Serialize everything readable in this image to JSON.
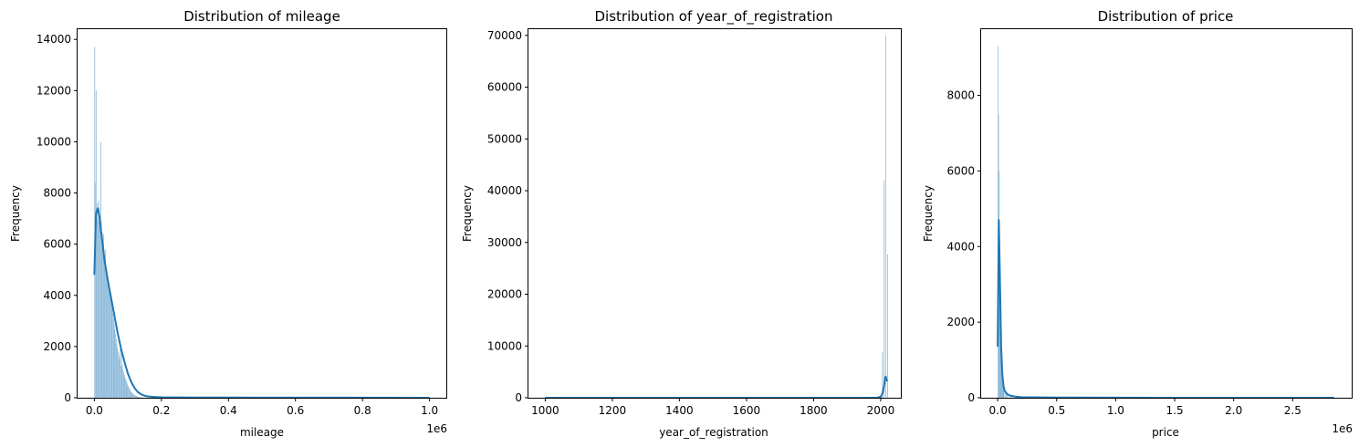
{
  "chart_data": [
    {
      "type": "bar",
      "title": "Distribution of mileage",
      "xlabel": "mileage",
      "ylabel": "Frequency",
      "x_offset_label": "1e6",
      "xlim": [
        -0.05,
        1.05
      ],
      "ylim": [
        0,
        14400
      ],
      "xticks": [
        0.0,
        0.2,
        0.4,
        0.6,
        0.8,
        1.0
      ],
      "xtick_labels": [
        "0.0",
        "0.2",
        "0.4",
        "0.6",
        "0.8",
        "1.0"
      ],
      "yticks": [
        0,
        2000,
        4000,
        6000,
        8000,
        10000,
        12000,
        14000
      ],
      "ytick_labels": [
        "0",
        "2000",
        "4000",
        "6000",
        "8000",
        "10000",
        "12000",
        "14000"
      ],
      "grid": false,
      "bar_color": "#1f77b4",
      "kde_color": "#1f77b4",
      "bars": {
        "x": [
          0.001,
          0.003,
          0.005,
          0.007,
          0.009,
          0.011,
          0.013,
          0.015,
          0.017,
          0.019,
          0.021,
          0.023,
          0.025,
          0.027,
          0.029,
          0.031,
          0.033,
          0.035,
          0.037,
          0.039,
          0.041,
          0.043,
          0.045,
          0.047,
          0.049,
          0.051,
          0.053,
          0.055,
          0.057,
          0.059,
          0.061,
          0.063,
          0.065,
          0.067,
          0.069,
          0.071,
          0.073,
          0.075,
          0.077,
          0.079,
          0.081,
          0.083,
          0.085,
          0.087,
          0.089,
          0.091,
          0.093,
          0.095,
          0.097,
          0.099,
          0.101,
          0.103,
          0.105,
          0.107,
          0.109,
          0.111,
          0.113,
          0.115,
          0.117,
          0.119,
          0.121,
          0.123,
          0.125,
          0.127,
          0.129,
          0.131,
          0.133,
          0.135,
          0.137,
          0.139,
          0.141,
          0.143,
          0.145,
          0.147,
          0.149,
          0.151,
          0.153,
          0.155,
          0.157,
          0.159,
          0.161,
          0.163,
          0.165,
          0.167,
          0.169,
          0.171,
          0.173,
          0.175
        ],
        "width": 0.002,
        "values": [
          13700,
          8400,
          12000,
          7000,
          7600,
          6900,
          7700,
          7400,
          7100,
          10000,
          6900,
          6500,
          6000,
          6400,
          5600,
          5500,
          5800,
          5100,
          5000,
          4800,
          4600,
          4500,
          4300,
          4100,
          3900,
          3700,
          3500,
          3300,
          3100,
          2900,
          2700,
          2500,
          2300,
          2100,
          1950,
          1800,
          1650,
          1500,
          1900,
          1250,
          1750,
          1300,
          1100,
          1000,
          900,
          820,
          740,
          660,
          590,
          520,
          460,
          400,
          350,
          300,
          260,
          220,
          190,
          160,
          140,
          120,
          100,
          85,
          70,
          60,
          50,
          42,
          35,
          30,
          25,
          20,
          18,
          15,
          12,
          10,
          9,
          8,
          7,
          6,
          5,
          4,
          4,
          3,
          3,
          2,
          2,
          2,
          1,
          1
        ]
      },
      "kde": {
        "x": [
          0.0,
          0.005,
          0.01,
          0.015,
          0.02,
          0.025,
          0.03,
          0.04,
          0.05,
          0.06,
          0.07,
          0.08,
          0.09,
          0.1,
          0.11,
          0.12,
          0.13,
          0.14,
          0.15,
          0.16,
          0.17,
          0.18,
          0.2,
          0.25,
          0.3,
          0.5,
          0.7,
          1.0
        ],
        "y": [
          4800,
          7200,
          7400,
          7100,
          6500,
          6000,
          5400,
          4600,
          3900,
          3200,
          2500,
          1900,
          1400,
          950,
          620,
          380,
          220,
          130,
          80,
          55,
          40,
          30,
          20,
          15,
          10,
          5,
          3,
          0
        ]
      }
    },
    {
      "type": "bar",
      "title": "Distribution of year_of_registration",
      "xlabel": "year_of_registration",
      "ylabel": "Frequency",
      "xlim": [
        950,
        2060
      ],
      "ylim": [
        0,
        71200
      ],
      "xticks": [
        1000,
        1200,
        1400,
        1600,
        1800,
        2000
      ],
      "xtick_labels": [
        "1000",
        "1200",
        "1400",
        "1600",
        "1800",
        "2000"
      ],
      "yticks": [
        0,
        10000,
        20000,
        30000,
        40000,
        50000,
        60000,
        70000
      ],
      "ytick_labels": [
        "0",
        "10000",
        "20000",
        "30000",
        "40000",
        "50000",
        "60000",
        "70000"
      ],
      "grid": false,
      "bar_color": "#1f77b4",
      "kde_color": "#1f77b4",
      "bars": {
        "x": [
          2005,
          2010,
          2015,
          2020
        ],
        "width": 2,
        "values": [
          8800,
          42000,
          70000,
          27700
        ]
      },
      "kde": {
        "x": [
          1000,
          1500,
          1900,
          1990,
          2000,
          2005,
          2010,
          2013,
          2015,
          2017,
          2020
        ],
        "y": [
          0,
          0,
          0,
          30,
          200,
          800,
          2200,
          3800,
          4100,
          3500,
          3200
        ]
      }
    },
    {
      "type": "bar",
      "title": "Distribution of price",
      "xlabel": "price",
      "ylabel": "Frequency",
      "x_offset_label": "1e6",
      "xlim": [
        -0.14,
        3.0
      ],
      "ylim": [
        0,
        9750
      ],
      "xticks": [
        0.0,
        0.5,
        1.0,
        1.5,
        2.0,
        2.5
      ],
      "xtick_labels": [
        "0.0",
        "0.5",
        "1.0",
        "1.5",
        "2.0",
        "2.5"
      ],
      "yticks": [
        0,
        2000,
        4000,
        6000,
        8000
      ],
      "ytick_labels": [
        "0",
        "2000",
        "4000",
        "6000",
        "8000"
      ],
      "grid": false,
      "bar_color": "#1f77b4",
      "kde_color": "#1f77b4",
      "bars": {
        "x": [
          0.002,
          0.006,
          0.01,
          0.014,
          0.018,
          0.022,
          0.026,
          0.03,
          0.034,
          0.038,
          0.042,
          0.046,
          0.05,
          0.06,
          0.07,
          0.08,
          0.1,
          0.12
        ],
        "width": 0.004,
        "values": [
          9300,
          7500,
          6000,
          4600,
          3600,
          2600,
          1900,
          1400,
          1000,
          750,
          550,
          400,
          300,
          200,
          140,
          90,
          50,
          30
        ]
      },
      "kde": {
        "x": [
          0.0,
          0.01,
          0.02,
          0.03,
          0.04,
          0.05,
          0.06,
          0.08,
          0.1,
          0.15,
          0.2,
          0.5,
          1.0,
          2.0,
          2.85
        ],
        "y": [
          1350,
          4700,
          3000,
          1300,
          600,
          300,
          180,
          100,
          60,
          30,
          15,
          5,
          2,
          0,
          0
        ]
      }
    }
  ]
}
